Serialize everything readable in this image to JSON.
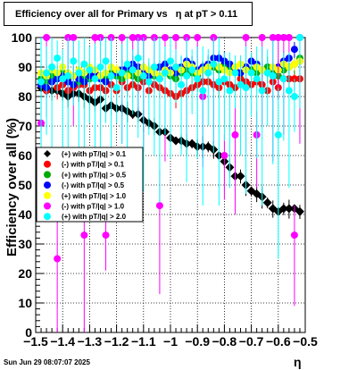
{
  "chart_data": {
    "type": "scatter",
    "title": "Efficiency over all for Primary vs   η at pT > 0.11",
    "xlabel": "η",
    "ylabel": "Efficiency over all (%)",
    "xlim": [
      -1.5,
      -0.5
    ],
    "ylim": [
      0,
      100
    ],
    "x_ticks": [
      "−1.5",
      "−1.4",
      "−1.3",
      "−1.2",
      "−1.1",
      "−1",
      "−0.9",
      "−0.8",
      "−0.7",
      "−0.6",
      "−0.5"
    ],
    "y_ticks": [
      "0",
      "10",
      "20",
      "30",
      "40",
      "50",
      "60",
      "70",
      "80",
      "90",
      "100"
    ],
    "grid": true,
    "legend_position": "left-middle",
    "series": [
      {
        "name": "(+) with pT/|q| > 0.1",
        "color": "#000000",
        "marker": "diamond",
        "x": [
          -1.48,
          -1.46,
          -1.44,
          -1.42,
          -1.4,
          -1.38,
          -1.36,
          -1.34,
          -1.32,
          -1.3,
          -1.28,
          -1.26,
          -1.24,
          -1.22,
          -1.2,
          -1.18,
          -1.16,
          -1.14,
          -1.12,
          -1.1,
          -1.08,
          -1.06,
          -1.04,
          -1.02,
          -1.0,
          -0.98,
          -0.96,
          -0.94,
          -0.92,
          -0.9,
          -0.88,
          -0.86,
          -0.84,
          -0.82,
          -0.8,
          -0.78,
          -0.76,
          -0.74,
          -0.72,
          -0.7,
          -0.68,
          -0.66,
          -0.64,
          -0.62,
          -0.6,
          -0.58,
          -0.56,
          -0.54,
          -0.52
        ],
        "y": [
          83,
          82,
          82,
          82,
          81,
          80,
          81,
          81,
          80,
          79,
          78,
          79,
          76,
          77,
          76,
          76,
          75,
          74,
          74,
          72,
          71,
          70,
          68,
          68,
          66,
          65,
          65,
          64,
          64,
          63,
          63,
          63,
          62,
          60,
          58,
          56,
          53,
          53,
          50,
          48,
          47,
          46,
          44,
          42,
          41,
          42,
          42,
          42,
          41
        ]
      },
      {
        "name": "(-) with pT/|q| > 0.1",
        "color": "#ff0000",
        "marker": "circle",
        "x": [
          -1.48,
          -1.46,
          -1.44,
          -1.42,
          -1.4,
          -1.38,
          -1.36,
          -1.34,
          -1.32,
          -1.3,
          -1.28,
          -1.26,
          -1.24,
          -1.22,
          -1.2,
          -1.18,
          -1.16,
          -1.14,
          -1.12,
          -1.1,
          -1.08,
          -1.06,
          -1.04,
          -1.02,
          -1.0,
          -0.98,
          -0.96,
          -0.94,
          -0.92,
          -0.9,
          -0.88,
          -0.86,
          -0.84,
          -0.82,
          -0.8,
          -0.78,
          -0.76,
          -0.74,
          -0.72,
          -0.7,
          -0.68,
          -0.66,
          -0.64,
          -0.62,
          -0.6,
          -0.58,
          -0.56,
          -0.54,
          -0.52
        ],
        "y": [
          84,
          82,
          85,
          83,
          84,
          82,
          83,
          84,
          84,
          82,
          83,
          83,
          82,
          84,
          82,
          85,
          83,
          84,
          83,
          85,
          82,
          84,
          83,
          82,
          81,
          80,
          81,
          82,
          83,
          84,
          85,
          85,
          84,
          83,
          85,
          84,
          83,
          86,
          85,
          84,
          85,
          84,
          82,
          85,
          83,
          86,
          86,
          86,
          86
        ]
      },
      {
        "name": "(+) with pT/|q| > 0.5",
        "color": "#00aa00",
        "marker": "circle",
        "x": [
          -1.48,
          -1.46,
          -1.44,
          -1.42,
          -1.4,
          -1.38,
          -1.36,
          -1.34,
          -1.32,
          -1.3,
          -1.28,
          -1.26,
          -1.24,
          -1.22,
          -1.2,
          -1.18,
          -1.16,
          -1.14,
          -1.12,
          -1.1,
          -1.08,
          -1.06,
          -1.04,
          -1.02,
          -1.0,
          -0.98,
          -0.96,
          -0.94,
          -0.92,
          -0.9,
          -0.88,
          -0.86,
          -0.84,
          -0.82,
          -0.8,
          -0.78,
          -0.76,
          -0.74,
          -0.72,
          -0.7,
          -0.68,
          -0.66,
          -0.64,
          -0.62,
          -0.6,
          -0.58,
          -0.56,
          -0.54,
          -0.52
        ],
        "y": [
          86,
          85,
          87,
          86,
          88,
          86,
          87,
          85,
          87,
          86,
          88,
          87,
          86,
          88,
          87,
          86,
          88,
          87,
          86,
          87,
          88,
          87,
          86,
          88,
          87,
          86,
          88,
          89,
          88,
          87,
          89,
          88,
          90,
          89,
          91,
          90,
          89,
          88,
          90,
          89,
          88,
          89,
          90,
          88,
          87,
          89,
          90,
          91,
          93
        ]
      },
      {
        "name": "(-) with pT/|q| > 0.5",
        "color": "#0000ff",
        "marker": "circle",
        "x": [
          -1.48,
          -1.46,
          -1.44,
          -1.42,
          -1.4,
          -1.38,
          -1.36,
          -1.34,
          -1.32,
          -1.3,
          -1.28,
          -1.26,
          -1.24,
          -1.22,
          -1.2,
          -1.18,
          -1.16,
          -1.14,
          -1.12,
          -1.1,
          -1.08,
          -1.06,
          -1.04,
          -1.02,
          -1.0,
          -0.98,
          -0.96,
          -0.94,
          -0.92,
          -0.9,
          -0.88,
          -0.86,
          -0.84,
          -0.82,
          -0.8,
          -0.78,
          -0.76,
          -0.74,
          -0.72,
          -0.7,
          -0.68,
          -0.66,
          -0.64,
          -0.62,
          -0.6,
          -0.58,
          -0.56,
          -0.54,
          -0.52
        ],
        "y": [
          84,
          83,
          85,
          86,
          87,
          85,
          84,
          86,
          85,
          87,
          88,
          86,
          85,
          87,
          88,
          89,
          90,
          91,
          90,
          88,
          87,
          89,
          90,
          91,
          89,
          88,
          90,
          92,
          91,
          89,
          90,
          91,
          93,
          93,
          92,
          91,
          89,
          88,
          90,
          92,
          91,
          89,
          88,
          87,
          90,
          92,
          93,
          96,
          92
        ]
      },
      {
        "name": "(+) with pT/|q| > 1.0",
        "color": "#ffff00",
        "marker": "circle",
        "x": [
          -1.48,
          -1.46,
          -1.44,
          -1.42,
          -1.4,
          -1.38,
          -1.36,
          -1.34,
          -1.32,
          -1.3,
          -1.28,
          -1.26,
          -1.24,
          -1.22,
          -1.2,
          -1.18,
          -1.16,
          -1.14,
          -1.12,
          -1.1,
          -1.08,
          -1.06,
          -1.04,
          -1.02,
          -1.0,
          -0.98,
          -0.96,
          -0.94,
          -0.92,
          -0.9,
          -0.88,
          -0.86,
          -0.84,
          -0.82,
          -0.8,
          -0.78,
          -0.76,
          -0.74,
          -0.72,
          -0.7,
          -0.68,
          -0.66,
          -0.64,
          -0.62,
          -0.6,
          -0.58,
          -0.56,
          -0.54,
          -0.52
        ],
        "y": [
          88,
          87,
          89,
          88,
          90,
          88,
          87,
          89,
          88,
          90,
          89,
          87,
          88,
          90,
          89,
          88,
          87,
          89,
          88,
          90,
          89,
          88,
          87,
          89,
          88,
          90,
          89,
          91,
          90,
          88,
          89,
          90,
          91,
          90,
          89,
          88,
          90,
          91,
          89,
          88,
          90,
          89,
          88,
          90,
          89,
          91,
          90,
          91,
          92
        ]
      },
      {
        "name": "(-) with pT/|q| > 1.0",
        "color": "#ff00ff",
        "marker": "circle",
        "x": [
          -1.48,
          -1.46,
          -1.42,
          -1.38,
          -1.36,
          -1.32,
          -1.28,
          -1.26,
          -1.24,
          -1.22,
          -1.18,
          -1.14,
          -1.12,
          -1.1,
          -1.06,
          -1.04,
          -1.02,
          -0.98,
          -0.94,
          -0.9,
          -0.88,
          -0.84,
          -0.8,
          -0.76,
          -0.72,
          -0.68,
          -0.66,
          -0.62,
          -0.6,
          -0.58,
          -0.56,
          -0.54,
          -0.52
        ],
        "y": [
          71,
          100,
          25,
          100,
          100,
          33,
          100,
          100,
          33,
          100,
          100,
          100,
          100,
          100,
          100,
          43,
          100,
          100,
          100,
          100,
          80,
          100,
          60,
          67,
          100,
          67,
          100,
          100,
          100,
          100,
          100,
          33,
          100
        ]
      },
      {
        "name": "(+) with pT/|q| > 2.0",
        "color": "#00ffff",
        "marker": "circle",
        "x": [
          -1.48,
          -1.46,
          -1.44,
          -1.42,
          -1.4,
          -1.38,
          -1.36,
          -1.34,
          -1.32,
          -1.3,
          -1.28,
          -1.26,
          -1.24,
          -1.22,
          -1.2,
          -1.18,
          -1.16,
          -1.14,
          -1.12,
          -1.1,
          -1.08,
          -1.06,
          -1.04,
          -1.02,
          -1.0,
          -0.98,
          -0.96,
          -0.94,
          -0.92,
          -0.9,
          -0.88,
          -0.86,
          -0.84,
          -0.82,
          -0.8,
          -0.78,
          -0.76,
          -0.74,
          -0.72,
          -0.7,
          -0.68,
          -0.66,
          -0.64,
          -0.62,
          -0.6,
          -0.58,
          -0.56,
          -0.54,
          -0.52
        ],
        "y": [
          85,
          88,
          90,
          93,
          86,
          87,
          92,
          88,
          91,
          89,
          86,
          90,
          92,
          87,
          83,
          88,
          91,
          89,
          93,
          87,
          85,
          90,
          86,
          88,
          92,
          90,
          84,
          87,
          89,
          86,
          82,
          88,
          91,
          85,
          86,
          82,
          88,
          84,
          83,
          88,
          86,
          82,
          88,
          87,
          67,
          86,
          82,
          80,
          100
        ]
      }
    ]
  },
  "footer": {
    "datestamp": "Sun Jun 29 08:07:07 2025"
  }
}
